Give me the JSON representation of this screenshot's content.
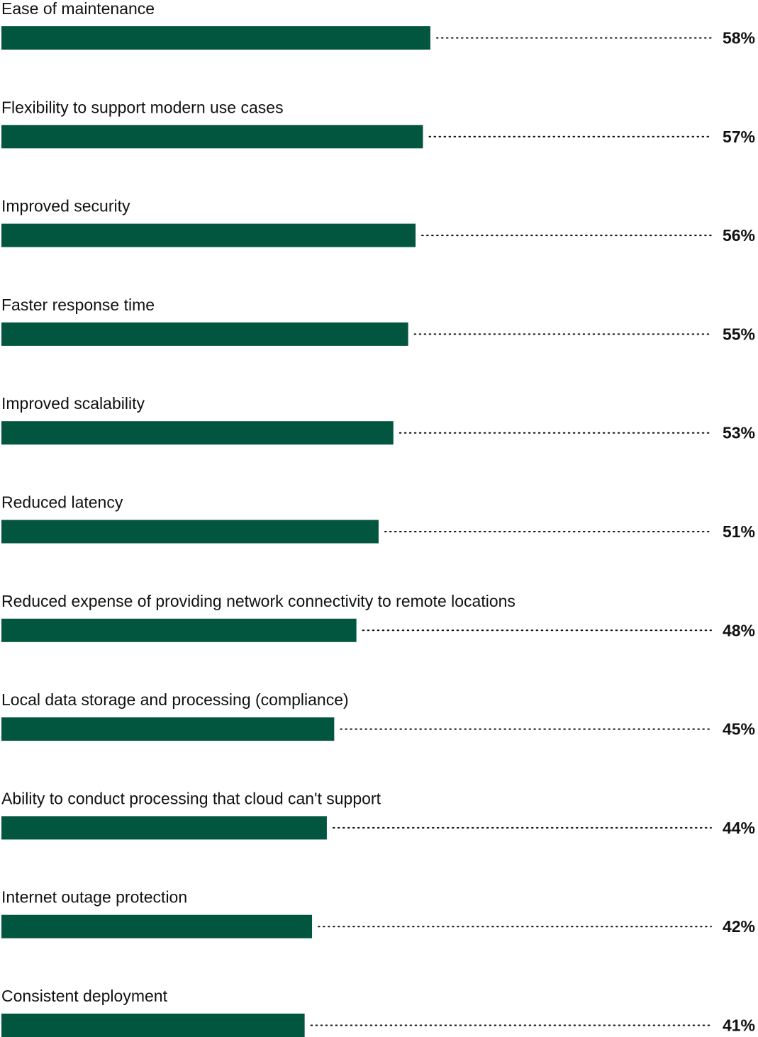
{
  "chart_data": {
    "type": "bar",
    "orientation": "horizontal",
    "categories": [
      "Ease of maintenance",
      "Flexibility to support modern use cases",
      "Improved security",
      "Faster response time",
      "Improved scalability",
      "Reduced latency",
      "Reduced expense of providing network connectivity to remote locations",
      "Local data storage and processing (compliance)",
      "Ability to conduct processing that cloud can't support",
      "Internet outage protection",
      "Consistent deployment"
    ],
    "values": [
      58,
      57,
      56,
      55,
      53,
      51,
      48,
      45,
      44,
      42,
      41
    ],
    "value_labels": [
      "58%",
      "57%",
      "56%",
      "55%",
      "53%",
      "51%",
      "48%",
      "45%",
      "44%",
      "42%",
      "41%"
    ],
    "unit": "%",
    "title": "",
    "xlabel": "",
    "ylabel": "",
    "grid": false,
    "legend": "none",
    "bar_color": "#02563f",
    "text_color": "#111111"
  }
}
